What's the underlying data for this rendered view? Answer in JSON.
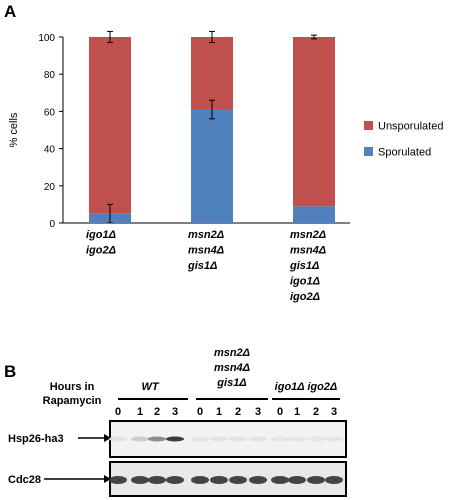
{
  "panel_a": {
    "label": "A",
    "ylabel": "% cells",
    "legend": [
      {
        "label": "Unsporulated",
        "color": "#c0504d"
      },
      {
        "label": "Sporulated",
        "color": "#4f81bd"
      }
    ],
    "categories": [
      [
        "igo1Δ",
        "igo2Δ"
      ],
      [
        "msn2Δ",
        "msn4Δ",
        "gis1Δ"
      ],
      [
        "msn2Δ",
        "msn4Δ",
        "gis1Δ",
        "igo1Δ",
        "igo2Δ"
      ]
    ]
  },
  "chart_data": {
    "type": "bar",
    "stacked": true,
    "categories": [
      "igo1Δ igo2Δ",
      "msn2Δ msn4Δ gis1Δ",
      "msn2Δ msn4Δ gis1Δ igo1Δ igo2Δ"
    ],
    "series": [
      {
        "name": "Sporulated",
        "values": [
          5,
          61,
          9
        ],
        "errors": [
          5,
          5,
          0
        ],
        "color": "#4f81bd"
      },
      {
        "name": "Unsporulated",
        "values": [
          95,
          39,
          91
        ],
        "errors": [
          3,
          3,
          1
        ],
        "color": "#c0504d"
      }
    ],
    "ylabel": "% cells",
    "yticks": [
      0,
      20,
      40,
      60,
      80,
      100
    ],
    "ylim": [
      0,
      100
    ],
    "legend_position": "right"
  },
  "panel_b": {
    "label": "B",
    "hours_label_line1": "Hours in",
    "hours_label_line2": "Rapamycin",
    "groups": [
      {
        "lines": [
          "WT"
        ],
        "hours": [
          "0",
          "1",
          "2",
          "3"
        ]
      },
      {
        "lines": [
          "msn2Δ",
          "msn4Δ",
          "gis1Δ"
        ],
        "hours": [
          "0",
          "1",
          "2",
          "3"
        ]
      },
      {
        "lines": [
          "igo1Δ igo2Δ"
        ],
        "hours": [
          "0",
          "1",
          "2",
          "3"
        ]
      }
    ],
    "blots": [
      {
        "label": "Hsp26-ha3",
        "band_intensity": [
          0.05,
          0.15,
          0.45,
          0.85,
          0.04,
          0.04,
          0.04,
          0.04,
          0.03,
          0.03,
          0.03,
          0.03
        ]
      },
      {
        "label": "Cdc28",
        "band_intensity": [
          0.8,
          0.8,
          0.8,
          0.8,
          0.8,
          0.8,
          0.8,
          0.8,
          0.8,
          0.8,
          0.8,
          0.8
        ]
      }
    ]
  }
}
